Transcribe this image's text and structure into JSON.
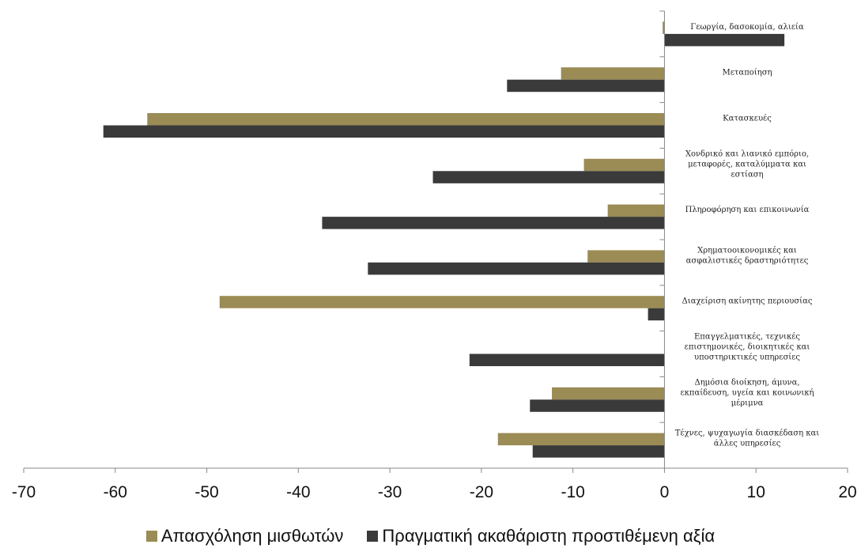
{
  "chart_data": {
    "type": "bar",
    "orientation": "horizontal",
    "categories": [
      [
        "Γεωργία, δασοκομία, αλιεία"
      ],
      [
        "Μεταποίηση"
      ],
      [
        "Κατασκευές"
      ],
      [
        "Χονδρικό και λιανικό εμπόριο,",
        "μεταφορές, καταλύμματα και",
        "εστίαση"
      ],
      [
        "Πληροφόρηση  και επικοινωνία"
      ],
      [
        "Χρηματοοικονομικές  και",
        "ασφαλιστικές δραστηριότητες"
      ],
      [
        "Διαχείριση ακίνητης περιουσίας"
      ],
      [
        "Επαγγελματικές, τεχνικές",
        "επιστημονικές, διοικητικές και",
        "υποστηρικτικές υπηρεσίες"
      ],
      [
        "Δημόσια διοίκηση, άμυνα,",
        "εκπαίδευση, υγεία και κοινωνική",
        "μέριμνα"
      ],
      [
        "Τέχνες, ψυχαγωγία διασκέδαση και",
        "άλλες υπηρεσίες"
      ]
    ],
    "series": [
      {
        "name": "Απασχόληση μισθωτών",
        "color": "#9b8b55",
        "values": [
          -0.2,
          -11.3,
          -56.5,
          -8.8,
          -6.2,
          -8.4,
          -48.6,
          0,
          -12.3,
          -18.2
        ]
      },
      {
        "name": "Πραγματική ακαθάριστη προστιθέμενη αξία",
        "color": "#3a3a3a",
        "values": [
          13.1,
          -17.2,
          -61.3,
          -25.3,
          -37.4,
          -32.4,
          -1.8,
          -21.3,
          -14.7,
          -14.4
        ]
      }
    ],
    "xlim": [
      -70,
      20
    ],
    "xticks": [
      "-70",
      "-60",
      "-50",
      "-40",
      "-30",
      "-20",
      "-10",
      "0",
      "10",
      "20"
    ],
    "xlabel": "",
    "ylabel": "",
    "title": "",
    "grid": false,
    "legend_position": "bottom"
  }
}
